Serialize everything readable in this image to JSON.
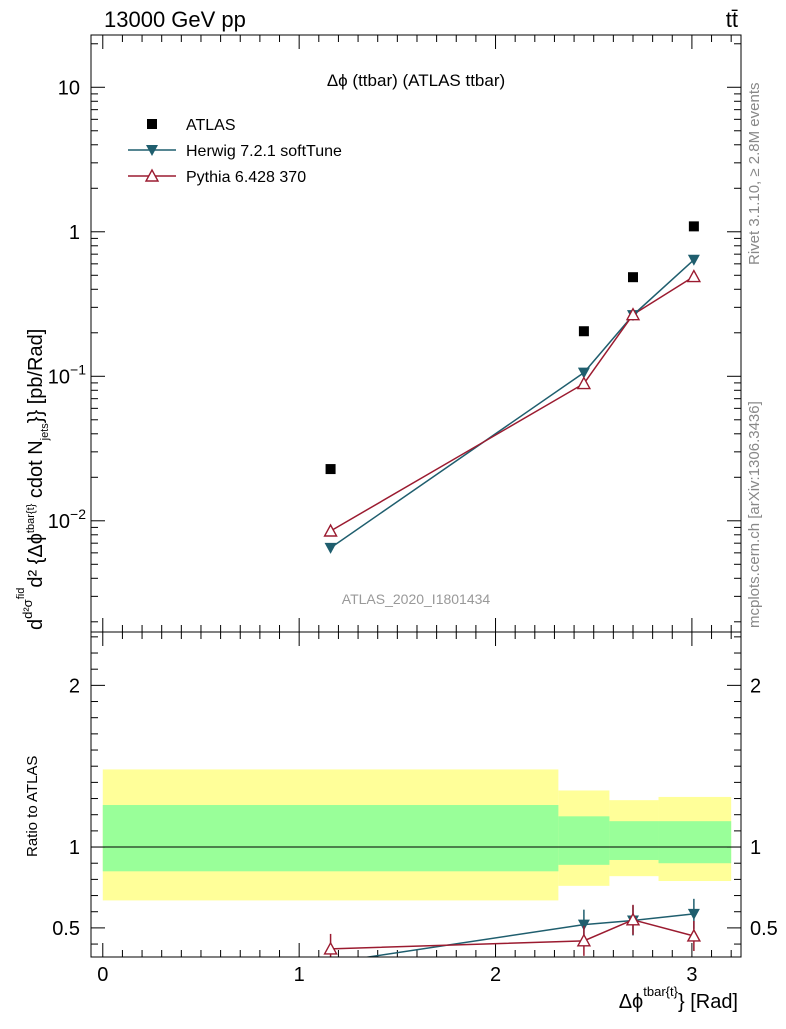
{
  "header": {
    "left": "13000 GeV pp",
    "right": "tt̄"
  },
  "side_labels": {
    "rivet": "Rivet 3.1.10, ≥ 2.8M events",
    "mcplots": "mcplots.cern.ch [arXiv:1306.3436]"
  },
  "chart_data": [
    {
      "type": "scatter",
      "title": "Δϕ (ttbar) (ATLAS ttbar)",
      "watermark": "ATLAS_2020_I1801434",
      "ylabel": "d d²σfid / d² {Δϕtbar{t}} cdot Njets}} [pb/Rad]",
      "ylabel_parts": {
        "a": "d",
        "b": "d²σ",
        "b_sup": "fid",
        "c": "d² {Δϕ",
        "c_sup": "tbar{t}",
        "d": " cdot N",
        "d_sub": "jets",
        "e": "}} [pb/Rad]"
      },
      "yscale": "log",
      "ylim": [
        0.0017,
        23
      ],
      "xlim": [
        -0.06,
        3.25
      ],
      "ytick_labels": [
        "10",
        "1",
        "10⁻¹",
        "10⁻²"
      ],
      "ytick_parts": [
        {
          "base": "10",
          "exp": "",
          "value": 10
        },
        {
          "base": "1",
          "exp": "",
          "value": 1
        },
        {
          "base": "10",
          "exp": "−1",
          "value": 0.1
        },
        {
          "base": "10",
          "exp": "−2",
          "value": 0.01
        }
      ],
      "legend_position": "top-left",
      "series": [
        {
          "name": "ATLAS",
          "marker": "square",
          "color": "#000000",
          "x": [
            1.16,
            2.45,
            2.7,
            3.01
          ],
          "y": [
            0.0228,
            0.205,
            0.485,
            1.09
          ]
        },
        {
          "name": "Herwig 7.2.1 softTune",
          "marker": "triangle-down",
          "color": "#1f5e6e",
          "x": [
            1.16,
            2.45,
            2.7,
            3.01
          ],
          "y": [
            0.0065,
            0.106,
            0.265,
            0.64
          ]
        },
        {
          "name": "Pythia 6.428 370",
          "marker": "triangle-up-open",
          "color": "#9b1b30",
          "x": [
            1.16,
            2.45,
            2.7,
            3.01
          ],
          "y": [
            0.0085,
            0.089,
            0.267,
            0.49
          ]
        }
      ]
    },
    {
      "type": "line",
      "ylabel": "Ratio to ATLAS",
      "xlabel": "Δϕtbar{t}} [Rad]",
      "xlabel_parts": {
        "a": "Δϕ",
        "sup": "tbar{t}",
        "b": "} [Rad]"
      },
      "ylim": [
        0.32,
        2.33
      ],
      "xlim": [
        -0.06,
        3.25
      ],
      "xtick_labels": [
        "0",
        "1",
        "2",
        "3"
      ],
      "ytick_labels": [
        "0.5",
        "1",
        "2"
      ],
      "bands": [
        {
          "x0": 0.0,
          "x1": 2.32,
          "yellow": [
            0.67,
            1.48
          ],
          "green": [
            0.85,
            1.26
          ]
        },
        {
          "x0": 2.32,
          "x1": 2.58,
          "yellow": [
            0.76,
            1.35
          ],
          "green": [
            0.89,
            1.19
          ]
        },
        {
          "x0": 2.58,
          "x1": 2.83,
          "yellow": [
            0.82,
            1.29
          ],
          "green": [
            0.92,
            1.16
          ]
        },
        {
          "x0": 2.83,
          "x1": 3.2,
          "yellow": [
            0.79,
            1.31
          ],
          "green": [
            0.9,
            1.16
          ]
        }
      ],
      "series": [
        {
          "name": "Herwig 7.2.1 softTune",
          "color": "#1f5e6e",
          "x": [
            1.16,
            2.45,
            2.7,
            3.01
          ],
          "y": [
            0.285,
            0.52,
            0.546,
            0.587
          ]
        },
        {
          "name": "Pythia 6.428 370",
          "color": "#9b1b30",
          "x": [
            1.16,
            2.45,
            2.7,
            3.01
          ],
          "y": [
            0.37,
            0.42,
            0.55,
            0.45
          ]
        }
      ]
    }
  ]
}
